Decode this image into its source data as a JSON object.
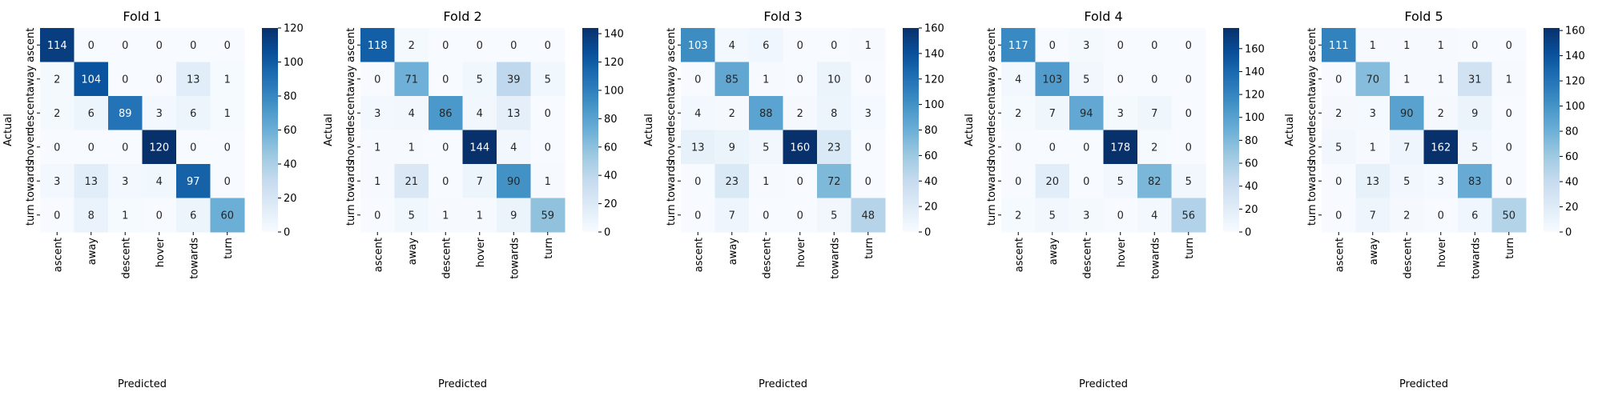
{
  "chart_data": [
    {
      "type": "heatmap",
      "title": "Fold 1",
      "xlabel": "Predicted",
      "ylabel": "Actual",
      "x_categories": [
        "ascent",
        "away",
        "descent",
        "hover",
        "towards",
        "turn"
      ],
      "y_categories": [
        "ascent",
        "away",
        "descent",
        "hover",
        "towards",
        "turn"
      ],
      "values": [
        [
          114,
          0,
          0,
          0,
          0,
          0
        ],
        [
          2,
          104,
          0,
          0,
          13,
          1
        ],
        [
          2,
          6,
          89,
          3,
          6,
          1
        ],
        [
          0,
          0,
          0,
          120,
          0,
          0
        ],
        [
          3,
          13,
          3,
          4,
          97,
          0
        ],
        [
          0,
          8,
          1,
          0,
          6,
          60
        ]
      ],
      "colorbar": {
        "min": 0,
        "max": 120,
        "ticks": [
          0,
          20,
          40,
          60,
          80,
          100,
          120
        ]
      },
      "colormap": "Blues"
    },
    {
      "type": "heatmap",
      "title": "Fold 2",
      "xlabel": "Predicted",
      "ylabel": "Actual",
      "x_categories": [
        "ascent",
        "away",
        "descent",
        "hover",
        "towards",
        "turn"
      ],
      "y_categories": [
        "ascent",
        "away",
        "descent",
        "hover",
        "towards",
        "turn"
      ],
      "values": [
        [
          118,
          2,
          0,
          0,
          0,
          0
        ],
        [
          0,
          71,
          0,
          5,
          39,
          5
        ],
        [
          3,
          4,
          86,
          4,
          13,
          0
        ],
        [
          1,
          1,
          0,
          144,
          4,
          0
        ],
        [
          1,
          21,
          0,
          7,
          90,
          1
        ],
        [
          0,
          5,
          1,
          1,
          9,
          59
        ]
      ],
      "colorbar": {
        "min": 0,
        "max": 144,
        "ticks": [
          0,
          20,
          40,
          60,
          80,
          100,
          120,
          140
        ]
      },
      "colormap": "Blues"
    },
    {
      "type": "heatmap",
      "title": "Fold 3",
      "xlabel": "Predicted",
      "ylabel": "Actual",
      "x_categories": [
        "ascent",
        "away",
        "descent",
        "hover",
        "towards",
        "turn"
      ],
      "y_categories": [
        "ascent",
        "away",
        "descent",
        "hover",
        "towards",
        "turn"
      ],
      "values": [
        [
          103,
          4,
          6,
          0,
          0,
          1
        ],
        [
          0,
          85,
          1,
          0,
          10,
          0
        ],
        [
          4,
          2,
          88,
          2,
          8,
          3
        ],
        [
          13,
          9,
          5,
          160,
          23,
          0
        ],
        [
          0,
          23,
          1,
          0,
          72,
          0
        ],
        [
          0,
          7,
          0,
          0,
          5,
          48
        ]
      ],
      "colorbar": {
        "min": 0,
        "max": 160,
        "ticks": [
          0,
          20,
          40,
          60,
          80,
          100,
          120,
          140,
          160
        ]
      },
      "colormap": "Blues"
    },
    {
      "type": "heatmap",
      "title": "Fold 4",
      "xlabel": "Predicted",
      "ylabel": "Actual",
      "x_categories": [
        "ascent",
        "away",
        "descent",
        "hover",
        "towards",
        "turn"
      ],
      "y_categories": [
        "ascent",
        "away",
        "descent",
        "hover",
        "towards",
        "turn"
      ],
      "values": [
        [
          117,
          0,
          3,
          0,
          0,
          0
        ],
        [
          4,
          103,
          5,
          0,
          0,
          0
        ],
        [
          2,
          7,
          94,
          3,
          7,
          0
        ],
        [
          0,
          0,
          0,
          178,
          2,
          0
        ],
        [
          0,
          20,
          0,
          5,
          82,
          5
        ],
        [
          2,
          5,
          3,
          0,
          4,
          56
        ]
      ],
      "colorbar": {
        "min": 0,
        "max": 178,
        "ticks": [
          0,
          20,
          40,
          60,
          80,
          100,
          120,
          140,
          160
        ]
      },
      "colormap": "Blues"
    },
    {
      "type": "heatmap",
      "title": "Fold 5",
      "xlabel": "Predicted",
      "ylabel": "Actual",
      "x_categories": [
        "ascent",
        "away",
        "descent",
        "hover",
        "towards",
        "turn"
      ],
      "y_categories": [
        "ascent",
        "away",
        "descent",
        "hover",
        "towards",
        "turn"
      ],
      "values": [
        [
          111,
          1,
          1,
          1,
          0,
          0
        ],
        [
          0,
          70,
          1,
          1,
          31,
          1
        ],
        [
          2,
          3,
          90,
          2,
          9,
          0
        ],
        [
          5,
          1,
          7,
          162,
          5,
          0
        ],
        [
          0,
          13,
          5,
          3,
          83,
          0
        ],
        [
          0,
          7,
          2,
          0,
          6,
          50
        ]
      ],
      "colorbar": {
        "min": 0,
        "max": 162,
        "ticks": [
          0,
          20,
          40,
          60,
          80,
          100,
          120,
          140,
          160
        ]
      },
      "colormap": "Blues"
    }
  ]
}
